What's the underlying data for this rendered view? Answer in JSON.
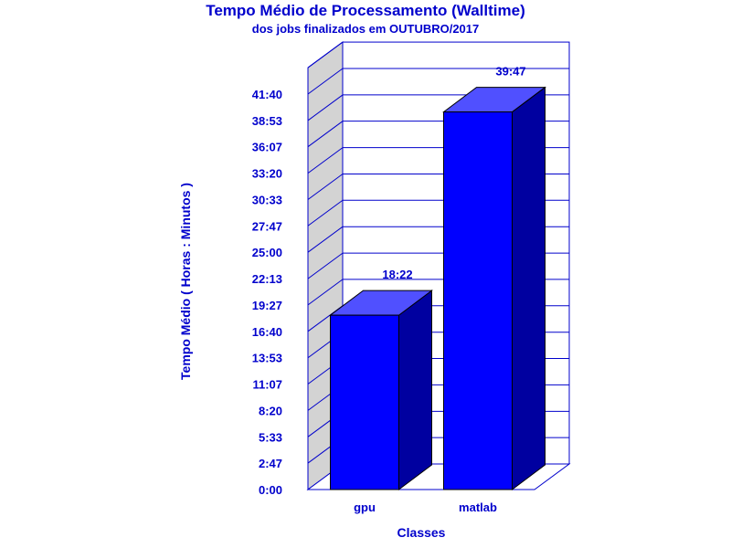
{
  "chart_data": {
    "type": "bar",
    "title": "Tempo Médio de Processamento (Walltime)",
    "subtitle": "dos jobs finalizados em OUTUBRO/2017",
    "xlabel": "Classes",
    "ylabel": "Tempo Médio ( Horas : Minutos )",
    "categories": [
      "gpu",
      "matlab"
    ],
    "values": [
      18.367,
      39.783
    ],
    "value_labels": [
      "18:22",
      "39:47"
    ],
    "yticks": [
      {
        "value": 0,
        "label": "0:00"
      },
      {
        "value": 2.7833,
        "label": "2:47"
      },
      {
        "value": 5.55,
        "label": "5:33"
      },
      {
        "value": 8.3333,
        "label": "8:20"
      },
      {
        "value": 11.1167,
        "label": "11:07"
      },
      {
        "value": 13.8833,
        "label": "13:53"
      },
      {
        "value": 16.6667,
        "label": "16:40"
      },
      {
        "value": 19.45,
        "label": "19:27"
      },
      {
        "value": 22.2167,
        "label": "22:13"
      },
      {
        "value": 25,
        "label": "25:00"
      },
      {
        "value": 27.7833,
        "label": "27:47"
      },
      {
        "value": 30.55,
        "label": "30:33"
      },
      {
        "value": 33.3333,
        "label": "33:20"
      },
      {
        "value": 36.1167,
        "label": "36:07"
      },
      {
        "value": 38.8833,
        "label": "38:53"
      },
      {
        "value": 41.6667,
        "label": "41:40"
      }
    ],
    "ylim": [
      0,
      44.45
    ],
    "grid": true,
    "legend": "none",
    "style": "3d",
    "colors": {
      "text": "#0000cc",
      "bar_front": "#0000ff",
      "bar_side": "#0000a0",
      "bar_top": "#5050ff",
      "wall": "#d3d3d3",
      "axis_lines": "#0000cc"
    }
  }
}
